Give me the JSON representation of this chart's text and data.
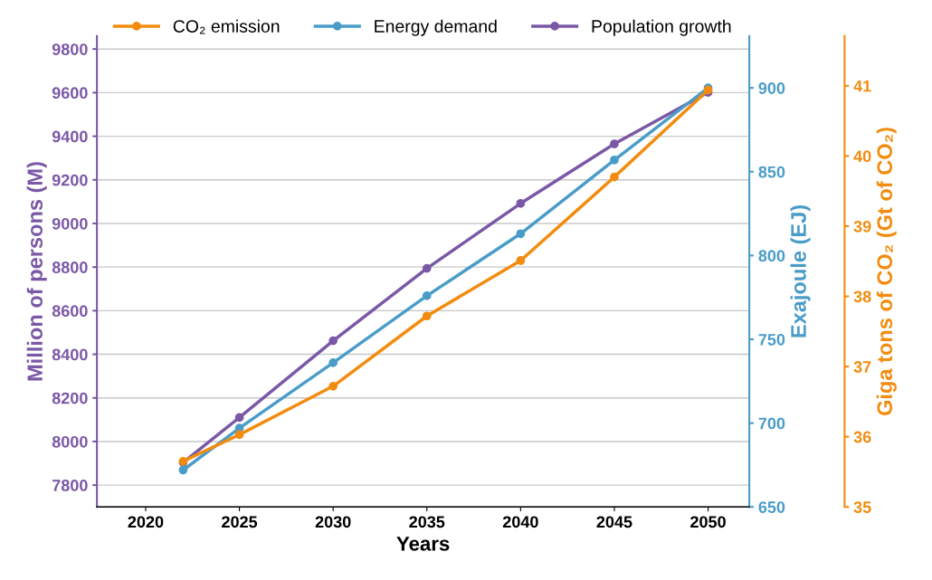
{
  "chart_data": {
    "type": "line",
    "xlabel": "Years",
    "ylabel": "Million of persons (M)",
    "y2label": "Exajoule (EJ)",
    "y3label": "Giga tons of CO₂ (Gt of CO₂)",
    "x": [
      2022,
      2025,
      2030,
      2035,
      2040,
      2045,
      2050
    ],
    "series": [
      {
        "name": "CO₂ emission",
        "color": "#f28c0f",
        "axis": "y3",
        "values": [
          35.65,
          36.03,
          36.72,
          37.72,
          38.51,
          39.7,
          40.94
        ]
      },
      {
        "name": "Energy demand",
        "color": "#4a9cc8",
        "axis": "y2",
        "values": [
          672,
          697,
          736,
          776,
          813,
          857,
          900
        ]
      },
      {
        "name": "Population growth",
        "color": "#7b58a6",
        "axis": "y",
        "values": [
          7904,
          8110,
          8462,
          8794,
          9092,
          9365,
          9601
        ]
      }
    ],
    "xlim": [
      2017.4,
      2052.2
    ],
    "xticks": [
      2020,
      2025,
      2030,
      2035,
      2040,
      2045,
      2050
    ],
    "ylim": [
      7700,
      9860
    ],
    "yticks": [
      7800,
      8000,
      8200,
      8400,
      8600,
      8800,
      9000,
      9200,
      9400,
      9600,
      9800
    ],
    "y2lim": [
      650,
      931
    ],
    "y2ticks": [
      650,
      700,
      750,
      800,
      850,
      900
    ],
    "y3lim": [
      35,
      41.71
    ],
    "y3ticks": [
      35,
      36,
      37,
      38,
      39,
      40,
      41
    ],
    "grid": "y",
    "legend": "top",
    "marker": "circle",
    "line_style": "solid"
  }
}
